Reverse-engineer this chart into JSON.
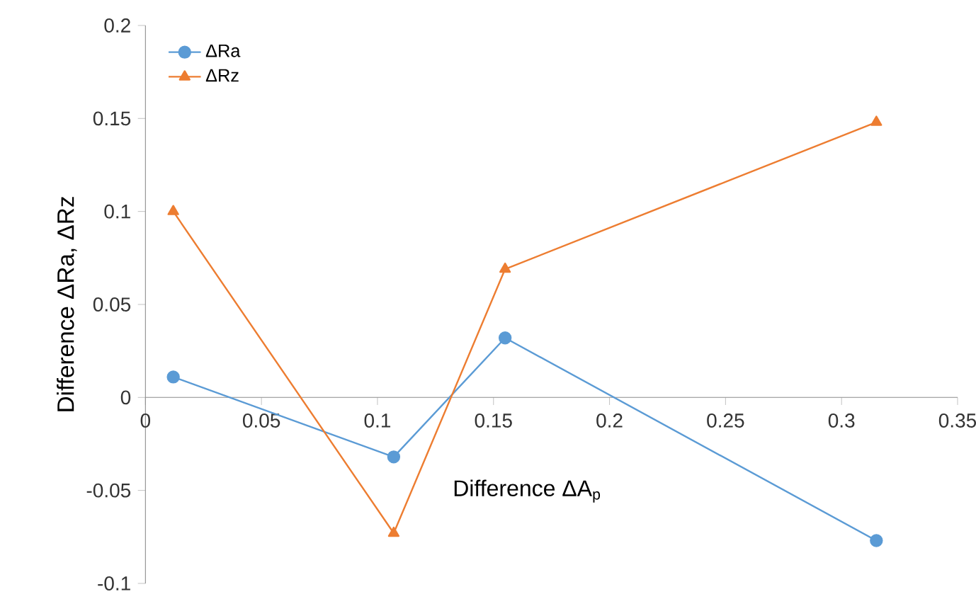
{
  "chart_data": {
    "type": "line",
    "xlabel": "Difference ΔA$_{p}$",
    "ylabel": "Difference ΔRa, ΔRz",
    "series": [
      {
        "name": "ΔRa",
        "color": "#5b9bd5",
        "marker": "circle",
        "x": [
          0.012,
          0.107,
          0.155,
          0.315
        ],
        "values": [
          0.011,
          -0.032,
          0.032,
          -0.077
        ]
      },
      {
        "name": "ΔRz",
        "color": "#ed7d31",
        "marker": "triangle",
        "x": [
          0.012,
          0.107,
          0.155,
          0.315
        ],
        "values": [
          0.1,
          -0.073,
          0.069,
          0.148
        ]
      }
    ],
    "xlim": [
      0,
      0.35
    ],
    "xticks": [
      0,
      0.05,
      0.1,
      0.15,
      0.2,
      0.25,
      0.3,
      0.35
    ],
    "ylim": [
      -0.1,
      0.2
    ],
    "yticks": [
      -0.1,
      -0.05,
      0,
      0.05,
      0.1,
      0.15,
      0.2
    ],
    "grid": false,
    "legend": "top left"
  }
}
